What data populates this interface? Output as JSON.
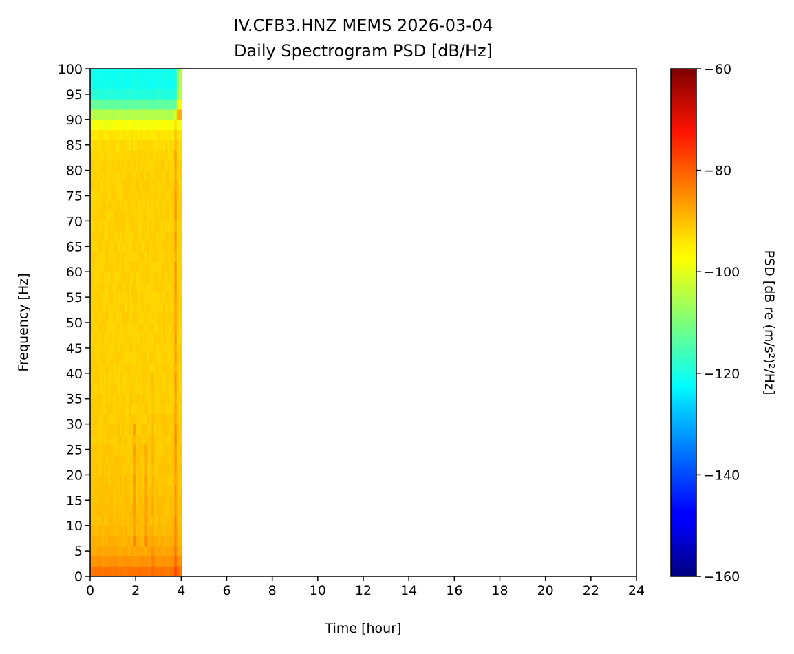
{
  "chart_data": {
    "type": "heatmap",
    "title": "IV.CFB3.HNZ MEMS 2026-03-04",
    "subtitle": "Daily Spectrogram PSD [dB/Hz]",
    "xlabel": "Time [hour]",
    "ylabel": "Frequency [Hz]",
    "xlim": [
      0,
      24
    ],
    "ylim": [
      0,
      100
    ],
    "xticks": [
      0,
      2,
      4,
      6,
      8,
      10,
      12,
      14,
      16,
      18,
      20,
      22,
      24
    ],
    "yticks": [
      0,
      5,
      10,
      15,
      20,
      25,
      30,
      35,
      40,
      45,
      50,
      55,
      60,
      65,
      70,
      75,
      80,
      85,
      90,
      95,
      100
    ],
    "data_time_range": [
      0,
      4.03
    ],
    "time_bin": 0.1,
    "freq_bin": 2,
    "frequency_profile": {
      "freq": [
        0,
        2,
        5,
        10,
        20,
        40,
        60,
        80,
        86,
        88,
        90,
        92,
        94,
        96,
        100
      ],
      "psd_db": [
        -82,
        -86,
        -89,
        -91,
        -92,
        -93,
        -93,
        -93,
        -94,
        -96,
        -101,
        -109,
        -117,
        -121,
        -121
      ]
    },
    "time_anomalies": [
      {
        "t": [
          1.9,
          2.0
        ],
        "freq": [
          5,
          30
        ],
        "delta_db": 4
      },
      {
        "t": [
          2.4,
          2.5
        ],
        "freq": [
          5,
          25
        ],
        "delta_db": 4
      },
      {
        "t": [
          2.7,
          2.8
        ],
        "freq": [
          0,
          40
        ],
        "delta_db": 2
      },
      {
        "t": [
          3.7,
          3.8
        ],
        "freq": [
          0,
          92
        ],
        "delta_db": 6
      },
      {
        "t": [
          3.8,
          4.03
        ],
        "freq": [
          90,
          100
        ],
        "delta_db": 15
      }
    ],
    "colorbar": {
      "label": "PSD [dB re (m/s²)²/Hz]",
      "colormap": "jet",
      "range": [
        -160,
        -60
      ],
      "ticks": [
        -60,
        -80,
        -100,
        -120,
        -140,
        -160
      ],
      "tick_labels": [
        "−60",
        "−80",
        "−100",
        "−120",
        "−140",
        "−160"
      ]
    }
  }
}
